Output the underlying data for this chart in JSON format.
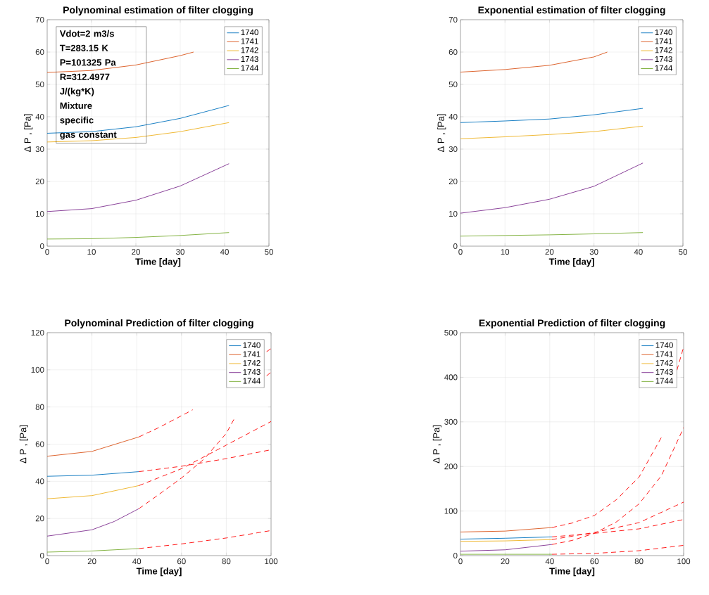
{
  "chart_data": [
    {
      "type": "line",
      "title": "Polynominal estimation of filter clogging",
      "xlabel": "Time [day]",
      "ylabel": "Δ P , [Pa]",
      "xlim": [
        0,
        50
      ],
      "xticks": [
        0,
        10,
        20,
        30,
        40,
        50
      ],
      "ylim": [
        0,
        70
      ],
      "yticks": [
        0,
        10,
        20,
        30,
        40,
        50,
        60,
        70
      ],
      "grid": true,
      "legend": "top right",
      "annotations": [
        "Vdot=2 m3/s",
        "T=283.15 K",
        "P=101325 Pa",
        "R=312.4977",
        "J/(kg*K)",
        "Mixture",
        "specific",
        "gas constant"
      ],
      "series": [
        {
          "name": "1740",
          "color": "#0072bd",
          "x": [
            0,
            10,
            20,
            30,
            41
          ],
          "values": [
            34.9,
            35.4,
            36.9,
            39.5,
            43.5
          ]
        },
        {
          "name": "1741",
          "color": "#d95319",
          "x": [
            0,
            10,
            20,
            30,
            33
          ],
          "values": [
            53.7,
            54.3,
            56.0,
            58.9,
            60.0
          ]
        },
        {
          "name": "1742",
          "color": "#edb120",
          "x": [
            0,
            10,
            20,
            30,
            41
          ],
          "values": [
            32.2,
            32.6,
            33.6,
            35.4,
            38.2
          ]
        },
        {
          "name": "1743",
          "color": "#7e2f8e",
          "x": [
            0,
            10,
            20,
            30,
            41
          ],
          "values": [
            10.7,
            11.6,
            14.2,
            18.6,
            25.5
          ]
        },
        {
          "name": "1744",
          "color": "#77ac30",
          "x": [
            0,
            10,
            20,
            30,
            41
          ],
          "values": [
            2.2,
            2.3,
            2.7,
            3.3,
            4.2
          ]
        }
      ]
    },
    {
      "type": "line",
      "title": "Exponential estimation of filter clogging",
      "xlabel": "Time [day]",
      "ylabel": "Δ P , [Pa]",
      "xlim": [
        0,
        50
      ],
      "xticks": [
        0,
        10,
        20,
        30,
        40,
        50
      ],
      "ylim": [
        0,
        70
      ],
      "yticks": [
        0,
        10,
        20,
        30,
        40,
        50,
        60,
        70
      ],
      "grid": true,
      "legend": "top right",
      "series": [
        {
          "name": "1740",
          "color": "#0072bd",
          "x": [
            0,
            10,
            20,
            30,
            41
          ],
          "values": [
            38.2,
            38.7,
            39.3,
            40.6,
            42.6
          ]
        },
        {
          "name": "1741",
          "color": "#d95319",
          "x": [
            0,
            10,
            20,
            30,
            33
          ],
          "values": [
            53.8,
            54.6,
            55.9,
            58.5,
            60.0
          ]
        },
        {
          "name": "1742",
          "color": "#edb120",
          "x": [
            0,
            10,
            20,
            30,
            41
          ],
          "values": [
            33.2,
            33.8,
            34.5,
            35.4,
            37.1
          ]
        },
        {
          "name": "1743",
          "color": "#7e2f8e",
          "x": [
            0,
            10,
            20,
            30,
            41
          ],
          "values": [
            10.2,
            11.9,
            14.5,
            18.5,
            25.7
          ]
        },
        {
          "name": "1744",
          "color": "#77ac30",
          "x": [
            0,
            10,
            20,
            30,
            41
          ],
          "values": [
            3.1,
            3.3,
            3.5,
            3.8,
            4.2
          ]
        }
      ]
    },
    {
      "type": "line",
      "title": "Polynominal Prediction of filter clogging",
      "xlabel": "Time [day]",
      "ylabel": "Δ P , [Pa]",
      "xlim": [
        0,
        100
      ],
      "xticks": [
        0,
        20,
        40,
        60,
        80,
        100
      ],
      "ylim": [
        0,
        120
      ],
      "yticks": [
        0,
        20,
        40,
        60,
        80,
        100,
        120
      ],
      "grid": true,
      "legend": "top right",
      "series": [
        {
          "name": "1740",
          "color": "#0072bd",
          "x": [
            0,
            20,
            41
          ],
          "values": [
            42.7,
            43.3,
            45.2
          ]
        },
        {
          "name": "1741",
          "color": "#d95319",
          "x": [
            0,
            20,
            41
          ],
          "values": [
            53.5,
            56.1,
            63.9
          ]
        },
        {
          "name": "1742",
          "color": "#edb120",
          "x": [
            0,
            20,
            41
          ],
          "values": [
            30.6,
            32.3,
            37.7
          ]
        },
        {
          "name": "1743",
          "color": "#7e2f8e",
          "x": [
            0,
            20,
            30,
            41
          ],
          "values": [
            10.5,
            13.9,
            18.4,
            25.3
          ]
        },
        {
          "name": "1744",
          "color": "#77ac30",
          "x": [
            0,
            20,
            41
          ],
          "values": [
            1.9,
            2.5,
            3.8
          ]
        },
        {
          "color": "#ff0000",
          "line_style": "dashed",
          "x": [
            41,
            60,
            80,
            100
          ],
          "values": [
            45.2,
            48.1,
            52.2,
            57.0
          ]
        },
        {
          "color": "#ff0000",
          "line_style": "dashed",
          "x": [
            41,
            50,
            60,
            65,
            80,
            98,
            100
          ],
          "values": [
            63.9,
            69.0,
            75.3,
            78.5,
            null,
            109.8,
            111.4
          ]
        },
        {
          "color": "#ff0000",
          "line_style": "dashed",
          "x": [
            41,
            60,
            80,
            100
          ],
          "values": [
            37.7,
            46.8,
            59.5,
            72.2
          ]
        },
        {
          "color": "#ff0000",
          "line_style": "dashed",
          "x": [
            41,
            50,
            60,
            70,
            80,
            84,
            90,
            98,
            100
          ],
          "values": [
            25.3,
            33.0,
            41.8,
            51.9,
            65.8,
            74.7,
            null,
            96.8,
            98.7
          ]
        },
        {
          "color": "#ff0000",
          "line_style": "dashed",
          "x": [
            41,
            60,
            80,
            100
          ],
          "values": [
            3.8,
            6.3,
            9.5,
            13.5
          ]
        }
      ]
    },
    {
      "type": "line",
      "title": "Exponential Prediction of filter clogging",
      "xlabel": "Time [day]",
      "ylabel": "Δ P , [Pa]",
      "xlim": [
        0,
        100
      ],
      "xticks": [
        0,
        20,
        40,
        60,
        80,
        100
      ],
      "ylim": [
        0,
        500
      ],
      "yticks": [
        0,
        100,
        200,
        300,
        400,
        500
      ],
      "grid": true,
      "legend": "top right",
      "series": [
        {
          "name": "1740",
          "color": "#0072bd",
          "x": [
            0,
            20,
            41
          ],
          "values": [
            37,
            39,
            42
          ]
        },
        {
          "name": "1741",
          "color": "#d95319",
          "x": [
            0,
            20,
            41
          ],
          "values": [
            53,
            55,
            63
          ]
        },
        {
          "name": "1742",
          "color": "#edb120",
          "x": [
            0,
            20,
            41
          ],
          "values": [
            32,
            33,
            36
          ]
        },
        {
          "name": "1743",
          "color": "#7e2f8e",
          "x": [
            0,
            20,
            41
          ],
          "values": [
            10,
            13,
            25
          ]
        },
        {
          "name": "1744",
          "color": "#77ac30",
          "x": [
            0,
            20,
            41
          ],
          "values": [
            3,
            3,
            3
          ]
        },
        {
          "color": "#ff0000",
          "line_style": "dashed",
          "x": [
            41,
            60,
            80,
            100
          ],
          "values": [
            42,
            50,
            60,
            81
          ]
        },
        {
          "color": "#ff0000",
          "line_style": "dashed",
          "x": [
            41,
            50,
            60,
            70,
            80,
            90,
            93,
            97,
            100
          ],
          "values": [
            63,
            73,
            90,
            126,
            176,
            265,
            null,
            416,
            468
          ]
        },
        {
          "color": "#ff0000",
          "line_style": "dashed",
          "x": [
            41,
            60,
            80,
            100
          ],
          "values": [
            36,
            52,
            74,
            120
          ]
        },
        {
          "color": "#ff0000",
          "line_style": "dashed",
          "x": [
            41,
            50,
            60,
            70,
            80,
            90,
            100
          ],
          "values": [
            25,
            34,
            50,
            76,
            116,
            179,
            287
          ]
        },
        {
          "color": "#ff0000",
          "line_style": "dashed",
          "x": [
            41,
            60,
            80,
            100
          ],
          "values": [
            3,
            5,
            11,
            23
          ]
        }
      ]
    }
  ]
}
